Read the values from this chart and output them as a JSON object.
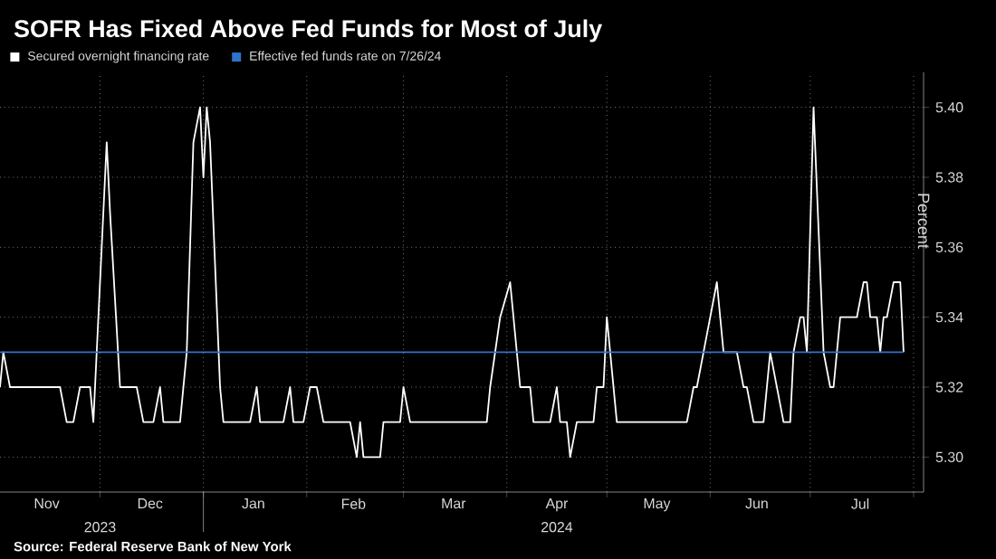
{
  "chart_data": {
    "type": "line",
    "title": "SOFR Has Fixed Above Fed Funds for Most of July",
    "ylabel": "Percent",
    "annotations": [
      "Source: Federal Reserve Bank of New York"
    ],
    "xlim": [
      "2023-11-01",
      "2024-08-04"
    ],
    "ylim": [
      5.29,
      5.41
    ],
    "yticks": [
      {
        "value": 5.3,
        "label": "5.30"
      },
      {
        "value": 5.32,
        "label": "5.32"
      },
      {
        "value": 5.34,
        "label": "5.34"
      },
      {
        "value": 5.36,
        "label": "5.36"
      },
      {
        "value": 5.38,
        "label": "5.38"
      },
      {
        "value": 5.4,
        "label": "5.40"
      }
    ],
    "xticks": [
      {
        "value": "2023-12-01",
        "label": null
      },
      {
        "value": "2024-01-01",
        "label": null
      },
      {
        "value": "2024-02-01",
        "label": null
      },
      {
        "value": "2024-03-01",
        "label": null
      },
      {
        "value": "2024-04-01",
        "label": null
      },
      {
        "value": "2024-05-01",
        "label": null
      },
      {
        "value": "2024-06-01",
        "label": null
      },
      {
        "value": "2024-07-01",
        "label": null
      },
      {
        "value": "2024-08-01",
        "label": null
      },
      {
        "value": "2023-11-15",
        "label": "Nov"
      },
      {
        "value": "2023-12-16",
        "label": "Dec"
      },
      {
        "value": "2024-01-16",
        "label": "Jan"
      },
      {
        "value": "2024-02-15",
        "label": "Feb"
      },
      {
        "value": "2024-03-16",
        "label": "Mar"
      },
      {
        "value": "2024-04-16",
        "label": "Apr"
      },
      {
        "value": "2024-05-16",
        "label": "May"
      },
      {
        "value": "2024-06-15",
        "label": "Jun"
      },
      {
        "value": "2024-07-16",
        "label": "Jul"
      }
    ],
    "x2lim": [
      "2023-11-01",
      "2024-08-04"
    ],
    "x2ticks": [
      {
        "value": "2023-12-01",
        "label": "2023"
      },
      {
        "value": "2024-01-01",
        "label": null
      },
      {
        "value": "2024-04-16",
        "label": "2024"
      }
    ],
    "grid": true,
    "legend": "top left",
    "series": [
      {
        "name": "Secured overnight financing rate",
        "color": "#ffffff",
        "x": [
          "2023-11-01",
          "2023-11-02",
          "2023-11-04",
          "2023-11-19",
          "2023-11-21",
          "2023-11-23",
          "2023-11-25",
          "2023-11-28",
          "2023-11-29",
          "2023-12-03",
          "2023-12-04",
          "2023-12-07",
          "2023-12-12",
          "2023-12-14",
          "2023-12-17",
          "2023-12-19",
          "2023-12-20",
          "2023-12-25",
          "2023-12-27",
          "2023-12-29",
          "2023-12-31",
          "2024-01-01",
          "2024-01-02",
          "2024-01-03",
          "2024-01-06",
          "2024-01-07",
          "2024-01-15",
          "2024-01-17",
          "2024-01-18",
          "2024-01-25",
          "2024-01-27",
          "2024-01-28",
          "2024-01-31",
          "2024-02-02",
          "2024-02-04",
          "2024-02-06",
          "2024-02-14",
          "2024-02-16",
          "2024-02-17",
          "2024-02-18",
          "2024-02-23",
          "2024-02-24",
          "2024-02-29",
          "2024-03-01",
          "2024-03-03",
          "2024-03-26",
          "2024-03-27",
          "2024-03-30",
          "2024-04-02",
          "2024-04-05",
          "2024-04-08",
          "2024-04-09",
          "2024-04-14",
          "2024-04-16",
          "2024-04-17",
          "2024-04-19",
          "2024-04-20",
          "2024-04-22",
          "2024-04-27",
          "2024-04-28",
          "2024-04-30",
          "2024-05-01",
          "2024-05-04",
          "2024-05-25",
          "2024-05-27",
          "2024-05-28",
          "2024-05-30",
          "2024-06-03",
          "2024-06-05",
          "2024-06-09",
          "2024-06-11",
          "2024-06-12",
          "2024-06-14",
          "2024-06-17",
          "2024-06-19",
          "2024-06-23",
          "2024-06-25",
          "2024-06-26",
          "2024-06-28",
          "2024-06-29",
          "2024-06-30",
          "2024-07-02",
          "2024-07-05",
          "2024-07-07",
          "2024-07-08",
          "2024-07-10",
          "2024-07-15",
          "2024-07-17",
          "2024-07-18",
          "2024-07-19",
          "2024-07-21",
          "2024-07-22",
          "2024-07-23",
          "2024-07-24",
          "2024-07-26",
          "2024-07-28",
          "2024-07-29"
        ],
        "values": [
          5.32,
          5.33,
          5.32,
          5.32,
          5.31,
          5.31,
          5.32,
          5.32,
          5.31,
          5.39,
          5.37,
          5.32,
          5.32,
          5.31,
          5.31,
          5.32,
          5.31,
          5.31,
          5.33,
          5.39,
          5.4,
          5.38,
          5.4,
          5.39,
          5.32,
          5.31,
          5.31,
          5.32,
          5.31,
          5.31,
          5.32,
          5.31,
          5.31,
          5.32,
          5.32,
          5.31,
          5.31,
          5.3,
          5.31,
          5.3,
          5.3,
          5.31,
          5.31,
          5.32,
          5.31,
          5.31,
          5.32,
          5.34,
          5.35,
          5.32,
          5.32,
          5.31,
          5.31,
          5.32,
          5.31,
          5.31,
          5.3,
          5.31,
          5.31,
          5.32,
          5.32,
          5.34,
          5.31,
          5.31,
          5.32,
          5.32,
          5.33,
          5.35,
          5.33,
          5.33,
          5.32,
          5.32,
          5.31,
          5.31,
          5.33,
          5.31,
          5.31,
          5.33,
          5.34,
          5.34,
          5.33,
          5.4,
          5.33,
          5.32,
          5.32,
          5.34,
          5.34,
          5.35,
          5.35,
          5.34,
          5.34,
          5.33,
          5.34,
          5.34,
          5.35,
          5.35,
          5.33
        ]
      },
      {
        "name": "Effective fed funds rate on 7/26/24",
        "color": "#2e75c8",
        "x": [
          "2023-11-01",
          "2024-07-29"
        ],
        "values": [
          5.33,
          5.33
        ]
      }
    ]
  }
}
